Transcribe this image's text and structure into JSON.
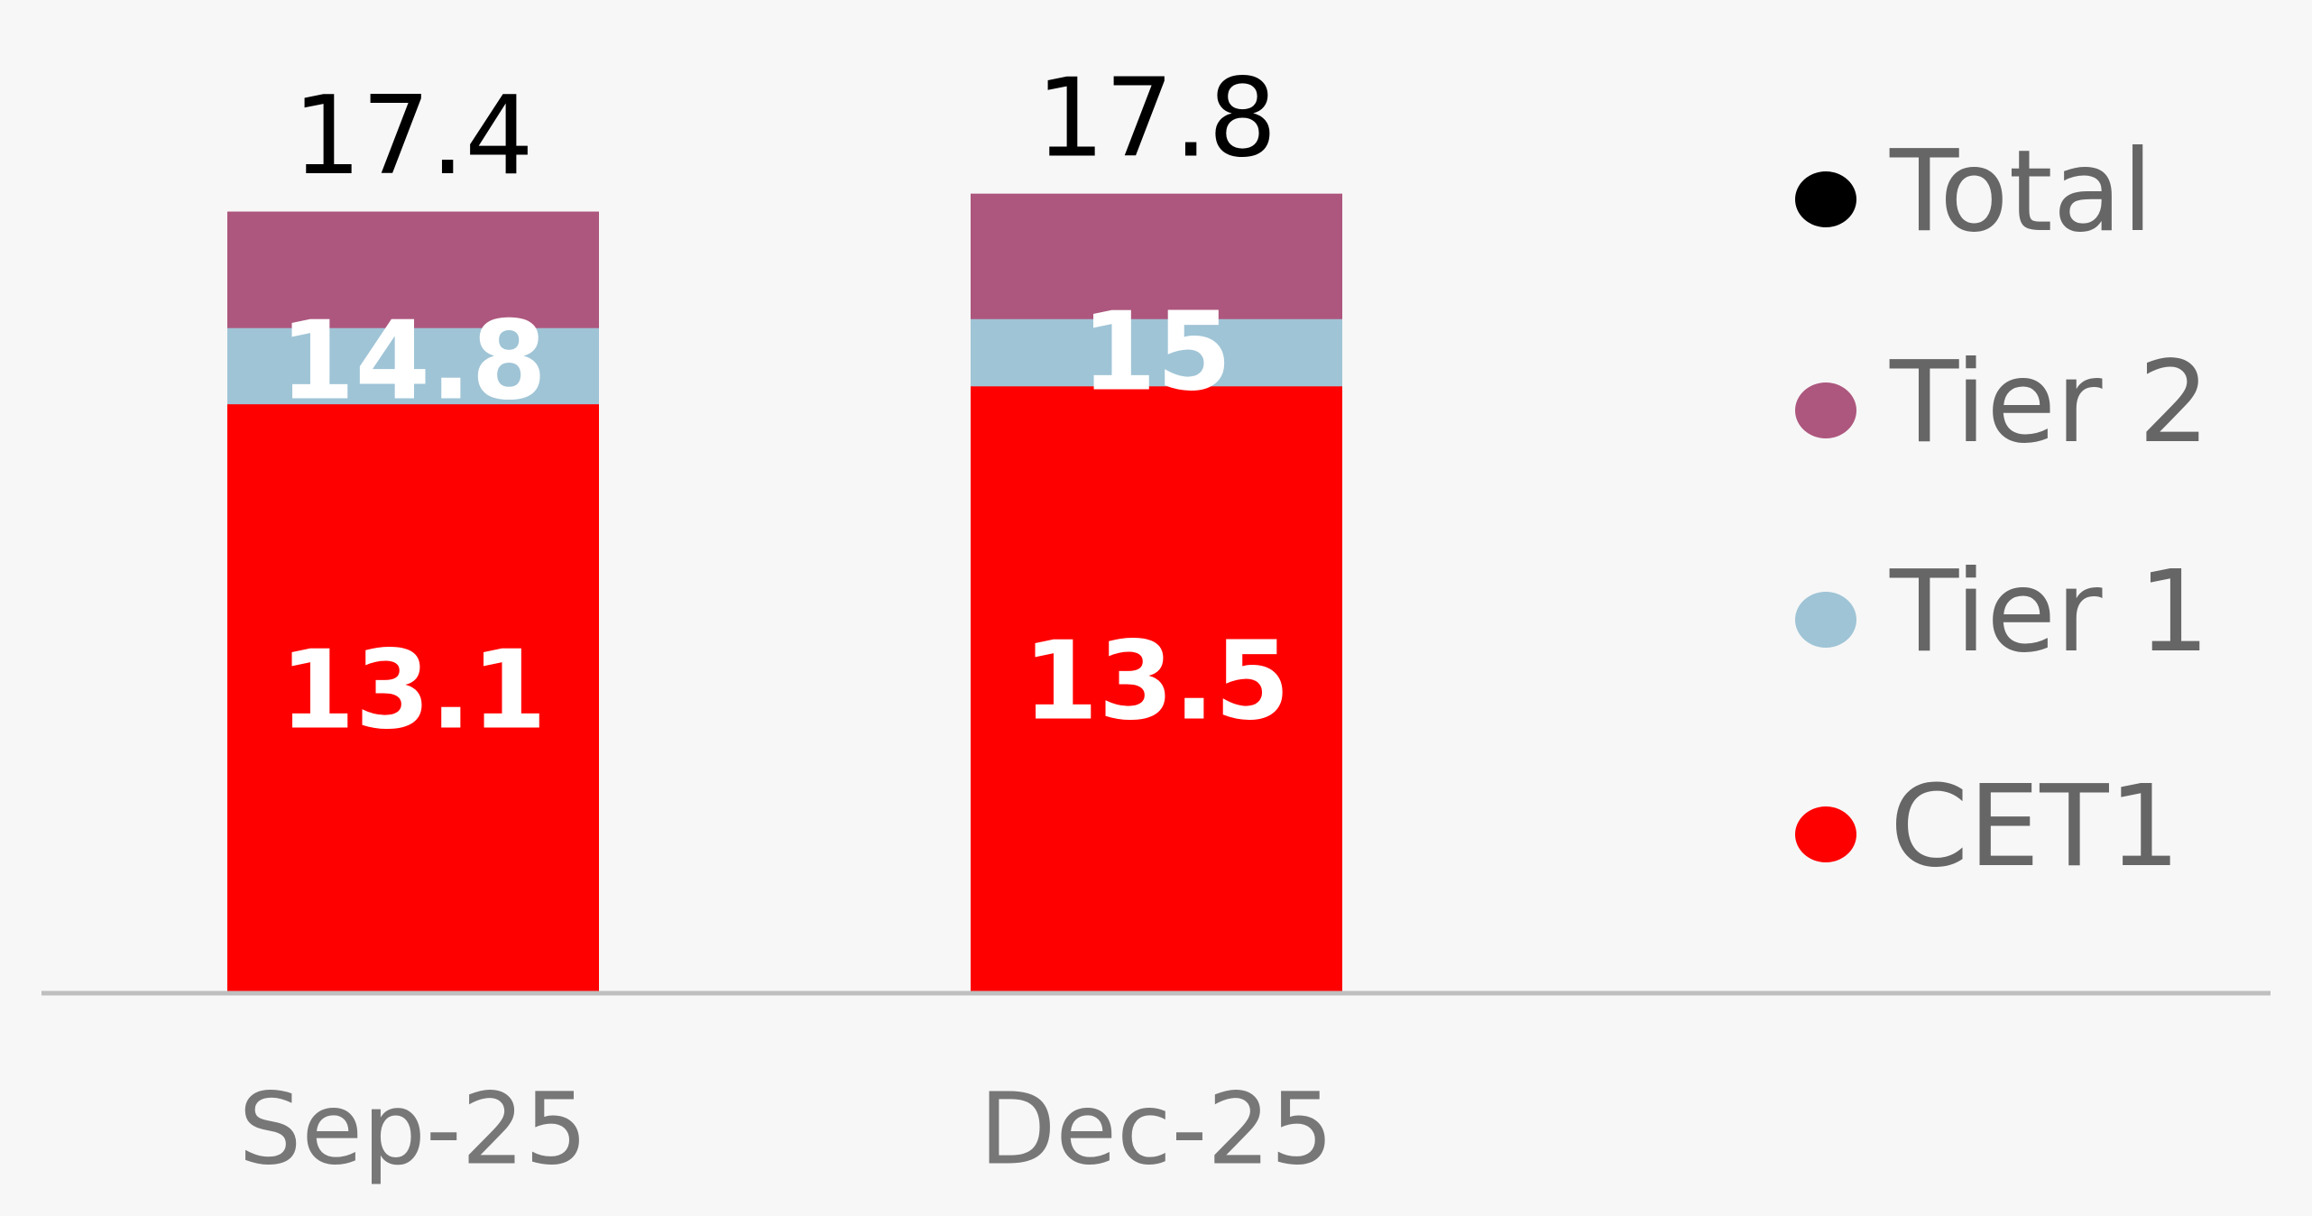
{
  "chart_data": {
    "type": "bar",
    "overlap": true,
    "categories": [
      "Sep-25",
      "Dec-25"
    ],
    "series": [
      {
        "name": "CET1",
        "color": "#ff0000",
        "values": [
          13.1,
          13.5
        ]
      },
      {
        "name": "Tier 1",
        "color": "#9fc4d6",
        "values": [
          14.8,
          15.0
        ]
      },
      {
        "name": "Tier 2",
        "color": "#ad577e",
        "values": [
          17.4,
          17.8
        ]
      }
    ],
    "total": {
      "name": "Total",
      "color": "#000000"
    },
    "ylim": [
      0,
      22
    ]
  }
}
